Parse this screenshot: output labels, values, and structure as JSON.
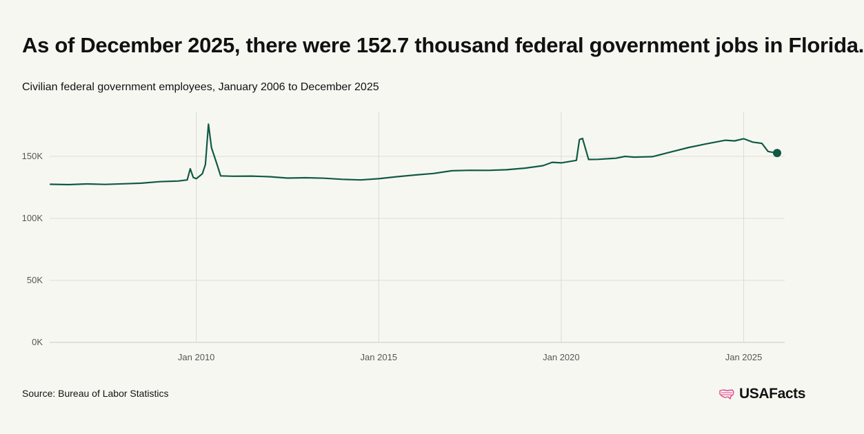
{
  "header": {
    "title": "As of December 2025, there were 152.7 thousand federal government jobs in Florida.",
    "subtitle": "Civilian federal government employees, January 2006 to December 2025"
  },
  "footer": {
    "source": "Source: Bureau of Labor Statistics",
    "brand": "USAFacts",
    "brand_icon": "us-map-icon"
  },
  "colors": {
    "line": "#0f5a44",
    "grid": "#dcdcd6",
    "background": "#f7f7f2",
    "brand_icon": "#e0418a"
  },
  "chart_data": {
    "type": "line",
    "title": "As of December 2025, there were 152.7 thousand federal government jobs in Florida.",
    "subtitle": "Civilian federal government employees, January 2006 to December 2025",
    "xlabel": "",
    "ylabel": "",
    "unit": "thousand",
    "x_range": [
      "2006-01",
      "2025-12"
    ],
    "ylim": [
      0,
      180
    ],
    "y_ticks": [
      0,
      50,
      100,
      150
    ],
    "y_tick_labels": [
      "0K",
      "50K",
      "100K",
      "150K"
    ],
    "x_ticks": [
      "2010-01",
      "2015-01",
      "2020-01",
      "2025-01"
    ],
    "x_tick_labels": [
      "Jan 2010",
      "Jan 2015",
      "Jan 2020",
      "Jan 2025"
    ],
    "grid": true,
    "legend": "none",
    "end_marker": {
      "x": "2025-12",
      "y": 152.7
    },
    "series": [
      {
        "points": [
          [
            "2006-01",
            127.5
          ],
          [
            "2006-07",
            127.2
          ],
          [
            "2007-01",
            127.8
          ],
          [
            "2007-07",
            127.4
          ],
          [
            "2008-01",
            127.9
          ],
          [
            "2008-07",
            128.4
          ],
          [
            "2009-01",
            129.6
          ],
          [
            "2009-07",
            130.1
          ],
          [
            "2009-10",
            131.0
          ],
          [
            "2009-11",
            140.0
          ],
          [
            "2009-12",
            133.0
          ],
          [
            "2010-01",
            132.0
          ],
          [
            "2010-03",
            136.0
          ],
          [
            "2010-04",
            143.5
          ],
          [
            "2010-05",
            176.0
          ],
          [
            "2010-06",
            157.0
          ],
          [
            "2010-08",
            142.0
          ],
          [
            "2010-09",
            134.3
          ],
          [
            "2011-01",
            134.0
          ],
          [
            "2011-07",
            134.1
          ],
          [
            "2012-01",
            133.6
          ],
          [
            "2012-07",
            132.5
          ],
          [
            "2013-01",
            132.8
          ],
          [
            "2013-07",
            132.4
          ],
          [
            "2014-01",
            131.5
          ],
          [
            "2014-07",
            131.0
          ],
          [
            "2015-01",
            132.0
          ],
          [
            "2015-07",
            133.6
          ],
          [
            "2016-01",
            135.0
          ],
          [
            "2016-07",
            136.2
          ],
          [
            "2017-01",
            138.4
          ],
          [
            "2017-07",
            138.8
          ],
          [
            "2018-01",
            138.7
          ],
          [
            "2018-07",
            139.2
          ],
          [
            "2019-01",
            140.5
          ],
          [
            "2019-07",
            142.5
          ],
          [
            "2019-10",
            145.2
          ],
          [
            "2020-01",
            144.8
          ],
          [
            "2020-06",
            146.8
          ],
          [
            "2020-07",
            163.5
          ],
          [
            "2020-08",
            164.5
          ],
          [
            "2020-10",
            147.5
          ],
          [
            "2021-01",
            147.6
          ],
          [
            "2021-07",
            148.5
          ],
          [
            "2021-10",
            150.0
          ],
          [
            "2022-01",
            149.4
          ],
          [
            "2022-07",
            149.8
          ],
          [
            "2023-01",
            153.5
          ],
          [
            "2023-07",
            157.2
          ],
          [
            "2024-01",
            160.2
          ],
          [
            "2024-07",
            163.0
          ],
          [
            "2024-10",
            162.5
          ],
          [
            "2025-01",
            164.2
          ],
          [
            "2025-04",
            161.5
          ],
          [
            "2025-07",
            160.5
          ],
          [
            "2025-09",
            154.0
          ],
          [
            "2025-10",
            153.5
          ],
          [
            "2025-12",
            152.7
          ]
        ]
      }
    ]
  }
}
